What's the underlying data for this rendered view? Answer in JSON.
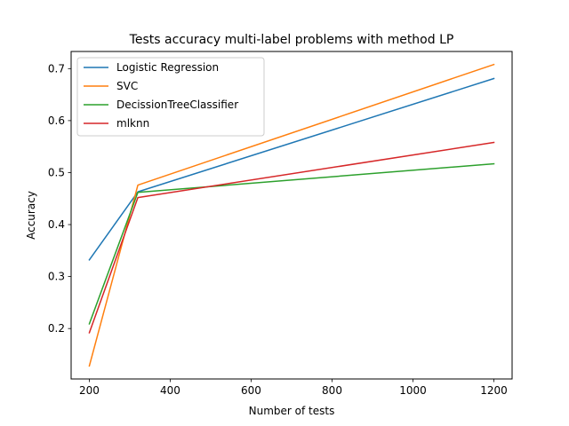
{
  "chart_data": {
    "type": "line",
    "title": "Tests accuracy multi-label problems with method LP",
    "xlabel": "Number of tests",
    "ylabel": "Accuracy",
    "x": [
      200,
      320,
      1200
    ],
    "xlim": [
      155,
      1245
    ],
    "ylim": [
      0.103,
      0.733
    ],
    "xticks": [
      200,
      400,
      600,
      800,
      1000,
      1200
    ],
    "yticks": [
      0.2,
      0.3,
      0.4,
      0.5,
      0.6,
      0.7
    ],
    "legend_position": "upper-left",
    "grid": false,
    "series": [
      {
        "name": "Logistic Regression",
        "color": "#1f77b4",
        "values": [
          0.332,
          0.463,
          0.681
        ]
      },
      {
        "name": "SVC",
        "color": "#ff7f0e",
        "values": [
          0.128,
          0.476,
          0.708
        ]
      },
      {
        "name": "DecissionTreeClassifier",
        "color": "#2ca02c",
        "values": [
          0.209,
          0.462,
          0.517
        ]
      },
      {
        "name": "mlknn",
        "color": "#d62728",
        "values": [
          0.192,
          0.452,
          0.558
        ]
      }
    ]
  }
}
